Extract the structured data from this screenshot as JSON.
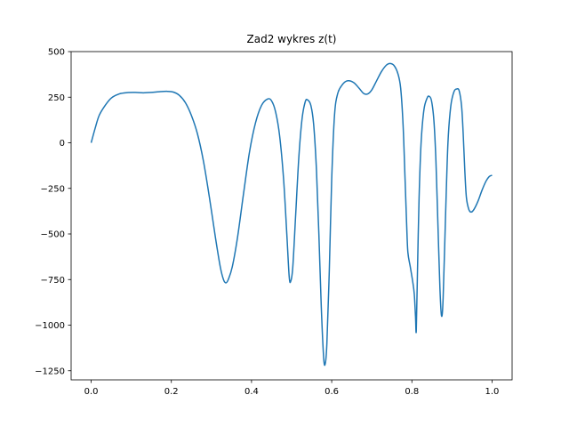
{
  "chart_data": {
    "type": "line",
    "title": "Zad2 wykres z(t)",
    "xlabel": "",
    "ylabel": "",
    "xlim": [
      -0.05,
      1.05
    ],
    "ylim": [
      -1300,
      500
    ],
    "x_ticks": [
      0.0,
      0.2,
      0.4,
      0.6,
      0.8,
      1.0
    ],
    "x_tick_labels": [
      "0.0",
      "0.2",
      "0.4",
      "0.6",
      "0.8",
      "1.0"
    ],
    "y_ticks": [
      500,
      250,
      0,
      -250,
      -500,
      -750,
      -1000,
      -1250
    ],
    "y_tick_labels": [
      "500",
      "250",
      "0",
      "−250",
      "−500",
      "−750",
      "−1000",
      "−1250"
    ],
    "grid": false,
    "series": [
      {
        "name": "",
        "color": "#1f77b4",
        "points": [
          [
            0.0,
            0
          ],
          [
            0.01,
            80
          ],
          [
            0.02,
            150
          ],
          [
            0.035,
            205
          ],
          [
            0.05,
            245
          ],
          [
            0.07,
            268
          ],
          [
            0.09,
            275
          ],
          [
            0.11,
            276
          ],
          [
            0.13,
            274
          ],
          [
            0.15,
            276
          ],
          [
            0.17,
            280
          ],
          [
            0.19,
            282
          ],
          [
            0.205,
            278
          ],
          [
            0.22,
            260
          ],
          [
            0.235,
            220
          ],
          [
            0.25,
            150
          ],
          [
            0.265,
            50
          ],
          [
            0.28,
            -100
          ],
          [
            0.295,
            -300
          ],
          [
            0.31,
            -520
          ],
          [
            0.322,
            -680
          ],
          [
            0.33,
            -750
          ],
          [
            0.336,
            -768
          ],
          [
            0.342,
            -750
          ],
          [
            0.352,
            -680
          ],
          [
            0.365,
            -520
          ],
          [
            0.38,
            -280
          ],
          [
            0.395,
            -50
          ],
          [
            0.41,
            110
          ],
          [
            0.425,
            205
          ],
          [
            0.44,
            240
          ],
          [
            0.45,
            230
          ],
          [
            0.46,
            170
          ],
          [
            0.47,
            40
          ],
          [
            0.48,
            -200
          ],
          [
            0.488,
            -500
          ],
          [
            0.494,
            -735
          ],
          [
            0.498,
            -758
          ],
          [
            0.503,
            -680
          ],
          [
            0.51,
            -400
          ],
          [
            0.518,
            -80
          ],
          [
            0.526,
            130
          ],
          [
            0.534,
            225
          ],
          [
            0.54,
            235
          ],
          [
            0.548,
            205
          ],
          [
            0.555,
            100
          ],
          [
            0.562,
            -150
          ],
          [
            0.568,
            -500
          ],
          [
            0.574,
            -900
          ],
          [
            0.58,
            -1180
          ],
          [
            0.584,
            -1210
          ],
          [
            0.588,
            -1100
          ],
          [
            0.594,
            -700
          ],
          [
            0.6,
            -200
          ],
          [
            0.607,
            150
          ],
          [
            0.615,
            270
          ],
          [
            0.627,
            320
          ],
          [
            0.64,
            340
          ],
          [
            0.655,
            330
          ],
          [
            0.668,
            300
          ],
          [
            0.68,
            270
          ],
          [
            0.69,
            268
          ],
          [
            0.7,
            290
          ],
          [
            0.712,
            340
          ],
          [
            0.724,
            390
          ],
          [
            0.736,
            425
          ],
          [
            0.745,
            435
          ],
          [
            0.755,
            425
          ],
          [
            0.765,
            380
          ],
          [
            0.772,
            300
          ],
          [
            0.778,
            100
          ],
          [
            0.783,
            -200
          ],
          [
            0.787,
            -450
          ],
          [
            0.79,
            -600
          ],
          [
            0.796,
            -680
          ],
          [
            0.802,
            -760
          ],
          [
            0.806,
            -830
          ],
          [
            0.809,
            -950
          ],
          [
            0.811,
            -1030
          ],
          [
            0.814,
            -700
          ],
          [
            0.818,
            -300
          ],
          [
            0.823,
            0
          ],
          [
            0.83,
            180
          ],
          [
            0.838,
            245
          ],
          [
            0.843,
            255
          ],
          [
            0.849,
            230
          ],
          [
            0.855,
            120
          ],
          [
            0.86,
            -100
          ],
          [
            0.865,
            -450
          ],
          [
            0.87,
            -800
          ],
          [
            0.874,
            -950
          ],
          [
            0.878,
            -850
          ],
          [
            0.884,
            -400
          ],
          [
            0.89,
            0
          ],
          [
            0.897,
            200
          ],
          [
            0.905,
            280
          ],
          [
            0.912,
            295
          ],
          [
            0.918,
            285
          ],
          [
            0.924,
            200
          ],
          [
            0.928,
            50
          ],
          [
            0.932,
            -150
          ],
          [
            0.936,
            -300
          ],
          [
            0.942,
            -365
          ],
          [
            0.948,
            -380
          ],
          [
            0.955,
            -365
          ],
          [
            0.965,
            -320
          ],
          [
            0.975,
            -260
          ],
          [
            0.985,
            -210
          ],
          [
            0.993,
            -185
          ],
          [
            1.0,
            -178
          ]
        ]
      }
    ]
  }
}
